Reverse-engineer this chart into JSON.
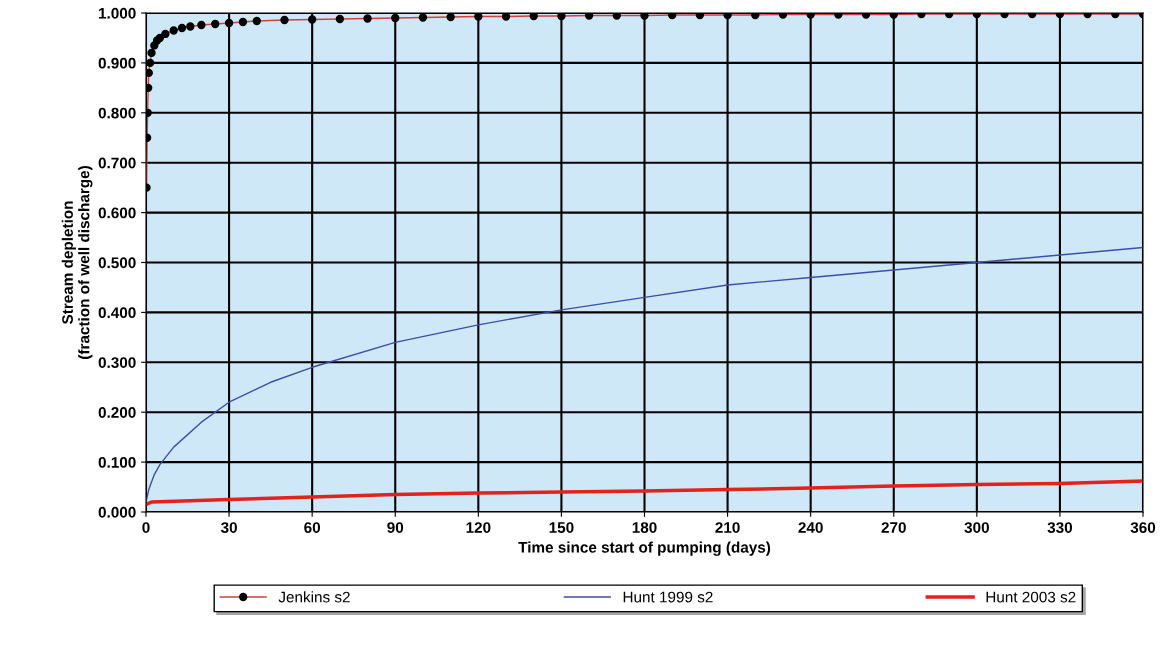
{
  "chart_data": {
    "type": "line",
    "xlabel": "Time since start of pumping (days)",
    "ylabel": "Stream depletion\n(fraction of well discharge)",
    "xlim": [
      0,
      360
    ],
    "xticks": [
      0,
      30,
      60,
      90,
      120,
      150,
      180,
      210,
      240,
      270,
      300,
      330,
      360
    ],
    "ylim": [
      0,
      1
    ],
    "yticks": [
      {
        "value": 0,
        "label": "0.000"
      },
      {
        "value": 0.1,
        "label": "0.100"
      },
      {
        "value": 0.2,
        "label": "0.200"
      },
      {
        "value": 0.3,
        "label": "0.300"
      },
      {
        "value": 0.4,
        "label": "0.400"
      },
      {
        "value": 0.5,
        "label": "0.500"
      },
      {
        "value": 0.6,
        "label": "0.600"
      },
      {
        "value": 0.7,
        "label": "0.700"
      },
      {
        "value": 0.8,
        "label": "0.800"
      },
      {
        "value": 0.9,
        "label": "0.900"
      },
      {
        "value": 1,
        "label": "1.000"
      }
    ],
    "grid": true,
    "legend": "bottom",
    "series": [
      {
        "name": "Jenkins s2",
        "color": "#000000",
        "marker": "circle",
        "x": [
          0.2,
          0.4,
          0.6,
          0.8,
          1,
          1.5,
          2,
          3,
          4,
          5,
          7,
          10,
          13,
          16,
          20,
          25,
          30,
          35,
          40,
          50,
          60,
          70,
          80,
          90,
          100,
          110,
          120,
          130,
          140,
          150,
          160,
          170,
          180,
          190,
          200,
          210,
          220,
          230,
          240,
          250,
          260,
          270,
          280,
          290,
          300,
          310,
          320,
          330,
          340,
          350,
          360
        ],
        "values": [
          0.65,
          0.75,
          0.8,
          0.85,
          0.88,
          0.9,
          0.92,
          0.935,
          0.945,
          0.95,
          0.958,
          0.965,
          0.97,
          0.973,
          0.976,
          0.978,
          0.98,
          0.982,
          0.984,
          0.986,
          0.987,
          0.988,
          0.989,
          0.99,
          0.991,
          0.992,
          0.993,
          0.993,
          0.994,
          0.994,
          0.995,
          0.995,
          0.995,
          0.996,
          0.996,
          0.996,
          0.996,
          0.997,
          0.997,
          0.997,
          0.997,
          0.997,
          0.998,
          0.998,
          0.998,
          0.998,
          0.998,
          0.998,
          0.998,
          0.998,
          0.998
        ]
      },
      {
        "name": "Hunt 1999 s2",
        "color": "#3c4fa8",
        "marker": "none",
        "x": [
          0,
          1,
          3,
          5,
          10,
          20,
          30,
          45,
          60,
          90,
          120,
          150,
          180,
          210,
          240,
          270,
          300,
          330,
          360
        ],
        "values": [
          0.02,
          0.045,
          0.075,
          0.095,
          0.13,
          0.18,
          0.22,
          0.26,
          0.29,
          0.34,
          0.375,
          0.405,
          0.43,
          0.455,
          0.47,
          0.485,
          0.5,
          0.515,
          0.53
        ]
      },
      {
        "name": "Hunt 2003 s2",
        "color": "#e0231b",
        "marker": "none",
        "x": [
          0,
          2,
          30,
          60,
          90,
          120,
          150,
          180,
          210,
          240,
          270,
          300,
          330,
          360
        ],
        "values": [
          0.015,
          0.02,
          0.025,
          0.03,
          0.035,
          0.038,
          0.04,
          0.042,
          0.045,
          0.048,
          0.052,
          0.055,
          0.057,
          0.062
        ]
      }
    ]
  }
}
